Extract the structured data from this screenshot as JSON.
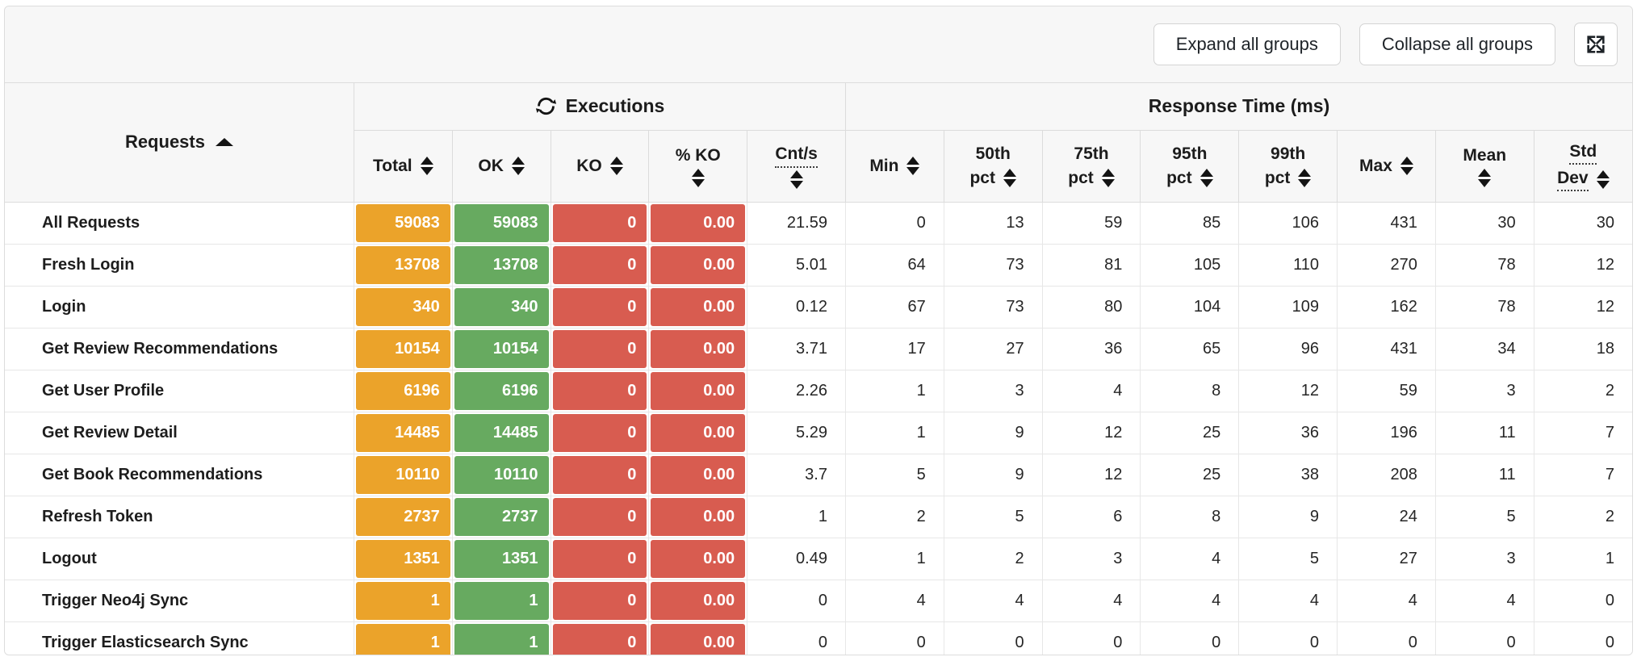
{
  "toolbar": {
    "expand_all_label": "Expand all groups",
    "collapse_all_label": "Collapse all groups",
    "fullscreen_icon": "fullscreen-icon"
  },
  "colors": {
    "orange": "#eba32a",
    "green": "#67aa60",
    "red": "#d85c50"
  },
  "table": {
    "requests_header": "Requests",
    "requests_sort": "ascending",
    "groups": [
      {
        "label": "Executions",
        "icon": "refresh-icon"
      },
      {
        "label": "Response Time (ms)",
        "icon": null
      }
    ],
    "columns": [
      {
        "id": "total",
        "line1": "Total",
        "line2": null,
        "icon_on": 1,
        "dotted": false,
        "color_key": "orange"
      },
      {
        "id": "ok",
        "line1": "OK",
        "line2": null,
        "icon_on": 1,
        "dotted": false,
        "color_key": "green"
      },
      {
        "id": "ko",
        "line1": "KO",
        "line2": null,
        "icon_on": 1,
        "dotted": false,
        "color_key": "red"
      },
      {
        "id": "pct_ko",
        "line1": "% KO",
        "line2": "",
        "icon_on": 2,
        "dotted": false,
        "color_key": "red"
      },
      {
        "id": "cnts",
        "line1": "Cnt/s",
        "line2": "",
        "icon_on": 2,
        "dotted": true,
        "color_key": null
      },
      {
        "id": "min",
        "line1": "Min",
        "line2": null,
        "icon_on": 1,
        "dotted": false,
        "color_key": null
      },
      {
        "id": "p50",
        "line1": "50th",
        "line2": "pct",
        "icon_on": 2,
        "dotted": false,
        "color_key": null
      },
      {
        "id": "p75",
        "line1": "75th",
        "line2": "pct",
        "icon_on": 2,
        "dotted": false,
        "color_key": null
      },
      {
        "id": "p95",
        "line1": "95th",
        "line2": "pct",
        "icon_on": 2,
        "dotted": false,
        "color_key": null
      },
      {
        "id": "p99",
        "line1": "99th",
        "line2": "pct",
        "icon_on": 2,
        "dotted": false,
        "color_key": null
      },
      {
        "id": "max",
        "line1": "Max",
        "line2": null,
        "icon_on": 1,
        "dotted": false,
        "color_key": null
      },
      {
        "id": "mean",
        "line1": "Mean",
        "line2": "",
        "icon_on": 2,
        "dotted": false,
        "color_key": null
      },
      {
        "id": "stddev",
        "line1": "Std",
        "line2": "Dev",
        "icon_on": 2,
        "dotted": true,
        "color_key": null
      }
    ],
    "rows": [
      {
        "name": "All Requests",
        "total": "59083",
        "ok": "59083",
        "ko": "0",
        "pct_ko": "0.00",
        "cnts": "21.59",
        "min": "0",
        "p50": "13",
        "p75": "59",
        "p95": "85",
        "p99": "106",
        "max": "431",
        "mean": "30",
        "stddev": "30"
      },
      {
        "name": "Fresh Login",
        "total": "13708",
        "ok": "13708",
        "ko": "0",
        "pct_ko": "0.00",
        "cnts": "5.01",
        "min": "64",
        "p50": "73",
        "p75": "81",
        "p95": "105",
        "p99": "110",
        "max": "270",
        "mean": "78",
        "stddev": "12"
      },
      {
        "name": "Login",
        "total": "340",
        "ok": "340",
        "ko": "0",
        "pct_ko": "0.00",
        "cnts": "0.12",
        "min": "67",
        "p50": "73",
        "p75": "80",
        "p95": "104",
        "p99": "109",
        "max": "162",
        "mean": "78",
        "stddev": "12"
      },
      {
        "name": "Get Review Recommendations",
        "total": "10154",
        "ok": "10154",
        "ko": "0",
        "pct_ko": "0.00",
        "cnts": "3.71",
        "min": "17",
        "p50": "27",
        "p75": "36",
        "p95": "65",
        "p99": "96",
        "max": "431",
        "mean": "34",
        "stddev": "18"
      },
      {
        "name": "Get User Profile",
        "total": "6196",
        "ok": "6196",
        "ko": "0",
        "pct_ko": "0.00",
        "cnts": "2.26",
        "min": "1",
        "p50": "3",
        "p75": "4",
        "p95": "8",
        "p99": "12",
        "max": "59",
        "mean": "3",
        "stddev": "2"
      },
      {
        "name": "Get Review Detail",
        "total": "14485",
        "ok": "14485",
        "ko": "0",
        "pct_ko": "0.00",
        "cnts": "5.29",
        "min": "1",
        "p50": "9",
        "p75": "12",
        "p95": "25",
        "p99": "36",
        "max": "196",
        "mean": "11",
        "stddev": "7"
      },
      {
        "name": "Get Book Recommendations",
        "total": "10110",
        "ok": "10110",
        "ko": "0",
        "pct_ko": "0.00",
        "cnts": "3.7",
        "min": "5",
        "p50": "9",
        "p75": "12",
        "p95": "25",
        "p99": "38",
        "max": "208",
        "mean": "11",
        "stddev": "7"
      },
      {
        "name": "Refresh Token",
        "total": "2737",
        "ok": "2737",
        "ko": "0",
        "pct_ko": "0.00",
        "cnts": "1",
        "min": "2",
        "p50": "5",
        "p75": "6",
        "p95": "8",
        "p99": "9",
        "max": "24",
        "mean": "5",
        "stddev": "2"
      },
      {
        "name": "Logout",
        "total": "1351",
        "ok": "1351",
        "ko": "0",
        "pct_ko": "0.00",
        "cnts": "0.49",
        "min": "1",
        "p50": "2",
        "p75": "3",
        "p95": "4",
        "p99": "5",
        "max": "27",
        "mean": "3",
        "stddev": "1"
      },
      {
        "name": "Trigger Neo4j Sync",
        "total": "1",
        "ok": "1",
        "ko": "0",
        "pct_ko": "0.00",
        "cnts": "0",
        "min": "4",
        "p50": "4",
        "p75": "4",
        "p95": "4",
        "p99": "4",
        "max": "4",
        "mean": "4",
        "stddev": "0"
      },
      {
        "name": "Trigger Elasticsearch Sync",
        "total": "1",
        "ok": "1",
        "ko": "0",
        "pct_ko": "0.00",
        "cnts": "0",
        "min": "0",
        "p50": "0",
        "p75": "0",
        "p95": "0",
        "p99": "0",
        "max": "0",
        "mean": "0",
        "stddev": "0"
      }
    ]
  }
}
